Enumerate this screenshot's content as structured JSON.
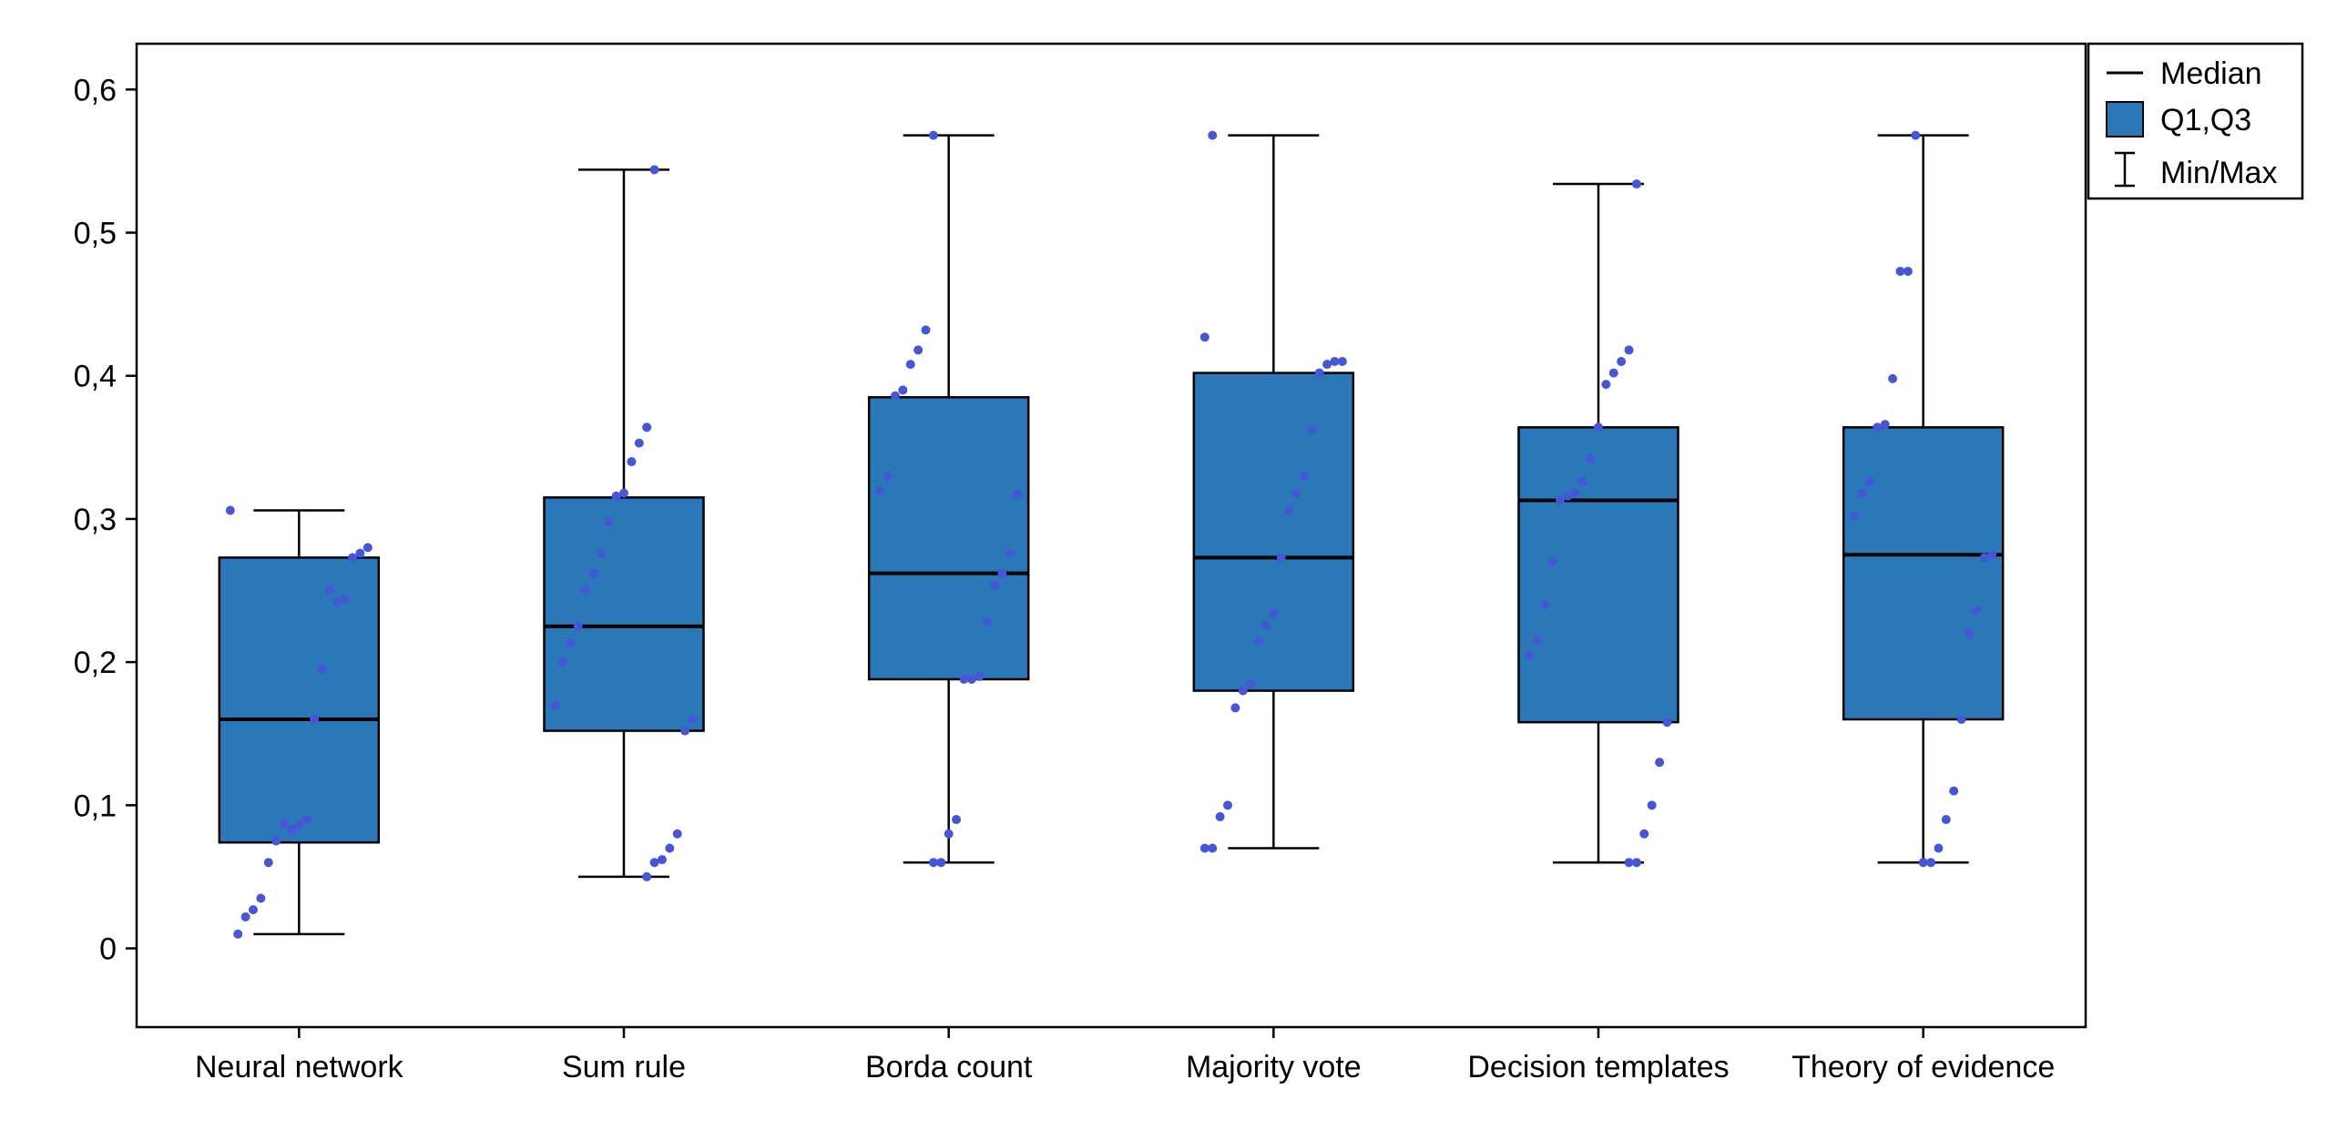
{
  "chart_data": {
    "type": "boxplot",
    "title": "",
    "xlabel": "",
    "ylabel": "",
    "ylim": [
      -0.055,
      0.632
    ],
    "yticks": [
      0,
      0.1,
      0.2,
      0.3,
      0.4,
      0.5,
      0.6
    ],
    "ytick_labels": [
      "0",
      "0,1",
      "0,2",
      "0,3",
      "0,4",
      "0,5",
      "0,6"
    ],
    "categories": [
      "Neural network",
      "Sum rule",
      "Borda count",
      "Majority vote",
      "Decision templates",
      "Theory of evidence"
    ],
    "boxes": [
      {
        "name": "Neural network",
        "min": 0.01,
        "q1": 0.074,
        "median": 0.16,
        "q3": 0.273,
        "max": 0.306,
        "points": [
          0.306,
          0.28,
          0.276,
          0.273,
          0.244,
          0.242,
          0.25,
          0.195,
          0.16,
          0.09,
          0.086,
          0.083,
          0.087,
          0.075,
          0.06,
          0.035,
          0.027,
          0.022,
          0.01
        ]
      },
      {
        "name": "Sum rule",
        "min": 0.05,
        "q1": 0.152,
        "median": 0.225,
        "q3": 0.315,
        "max": 0.544,
        "points": [
          0.544,
          0.364,
          0.353,
          0.34,
          0.318,
          0.316,
          0.298,
          0.276,
          0.262,
          0.25,
          0.225,
          0.213,
          0.2,
          0.17,
          0.16,
          0.152,
          0.08,
          0.07,
          0.062,
          0.06,
          0.05
        ]
      },
      {
        "name": "Borda count",
        "min": 0.06,
        "q1": 0.188,
        "median": 0.262,
        "q3": 0.385,
        "max": 0.568,
        "points": [
          0.568,
          0.432,
          0.418,
          0.408,
          0.39,
          0.386,
          0.33,
          0.32,
          0.317,
          0.276,
          0.262,
          0.254,
          0.228,
          0.19,
          0.188,
          0.188,
          0.09,
          0.08,
          0.06,
          0.06
        ]
      },
      {
        "name": "Majority vote",
        "min": 0.07,
        "q1": 0.18,
        "median": 0.273,
        "q3": 0.402,
        "max": 0.568,
        "points": [
          0.568,
          0.427,
          0.41,
          0.41,
          0.408,
          0.402,
          0.362,
          0.33,
          0.318,
          0.306,
          0.273,
          0.234,
          0.226,
          0.215,
          0.185,
          0.18,
          0.168,
          0.1,
          0.092,
          0.07,
          0.07
        ]
      },
      {
        "name": "Decision templates",
        "min": 0.06,
        "q1": 0.158,
        "median": 0.313,
        "q3": 0.364,
        "max": 0.534,
        "points": [
          0.534,
          0.418,
          0.41,
          0.402,
          0.394,
          0.364,
          0.342,
          0.326,
          0.318,
          0.316,
          0.313,
          0.27,
          0.24,
          0.215,
          0.205,
          0.158,
          0.13,
          0.1,
          0.08,
          0.06,
          0.06
        ]
      },
      {
        "name": "Theory of evidence",
        "min": 0.06,
        "q1": 0.16,
        "median": 0.275,
        "q3": 0.364,
        "max": 0.568,
        "points": [
          0.568,
          0.473,
          0.473,
          0.398,
          0.366,
          0.364,
          0.326,
          0.318,
          0.302,
          0.275,
          0.273,
          0.236,
          0.22,
          0.16,
          0.11,
          0.09,
          0.07,
          0.06,
          0.06
        ]
      }
    ],
    "legend": {
      "position": "top-right",
      "entries": [
        {
          "label": "Median",
          "symbol": "line"
        },
        {
          "label": "Q1,Q3",
          "symbol": "box"
        },
        {
          "label": "Min/Max",
          "symbol": "whisker"
        }
      ]
    },
    "colors": {
      "box_fill": "#2b78b8",
      "point": "#4556d6",
      "line": "#000000",
      "background": "#ffffff"
    }
  }
}
